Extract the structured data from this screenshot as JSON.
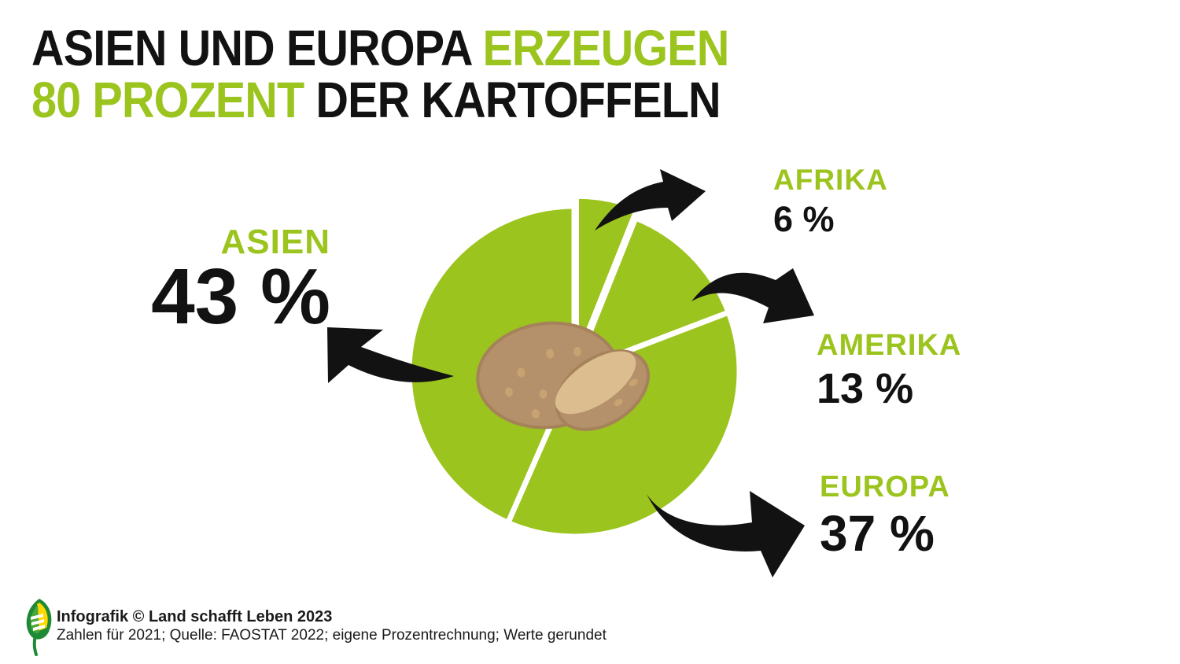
{
  "title": {
    "line1_black": "ASIEN UND EUROPA ",
    "line1_green": "ERZEUGEN",
    "line2_green": "80 PROZENT ",
    "line2_black": "DER KARTOFFELN"
  },
  "chart_data": {
    "type": "pie",
    "title": "Asien und Europa erzeugen 80 Prozent der Kartoffeln",
    "unit": "%",
    "slices": [
      {
        "name": "AFRIKA",
        "value": 6,
        "value_label": "6 %"
      },
      {
        "name": "AMERIKA",
        "value": 13,
        "value_label": "13 %"
      },
      {
        "name": "EUROPA",
        "value": 37,
        "value_label": "37 %"
      },
      {
        "name": "ASIEN",
        "value": 43,
        "value_label": "43 %"
      }
    ],
    "start_angle_deg": 0,
    "clockwise": true,
    "exploded_slice": "AFRIKA",
    "legend_position": "around",
    "note": "Werte gerundet"
  },
  "footer": {
    "credit": "Infografik © Land schafft Leben 2023",
    "source": "Zahlen für 2021; Quelle: FAOSTAT 2022; eigene Prozentrechnung; Werte gerundet"
  },
  "icons": {
    "logo": "leaf-logo",
    "center_illustration": "potato-icon",
    "pointer": "curved-arrow-icon"
  },
  "colors": {
    "green": "#9cc41e",
    "ink": "#121212",
    "background": "#ffffff",
    "gap_white": "#ffffff",
    "potato_skin": "#b4916a",
    "potato_outline": "#a5825a",
    "potato_flesh": "#dcbd90",
    "potato_spot": "#c9a272",
    "logo_green": "#1f8a36",
    "logo_yellow": "#ffd800"
  }
}
